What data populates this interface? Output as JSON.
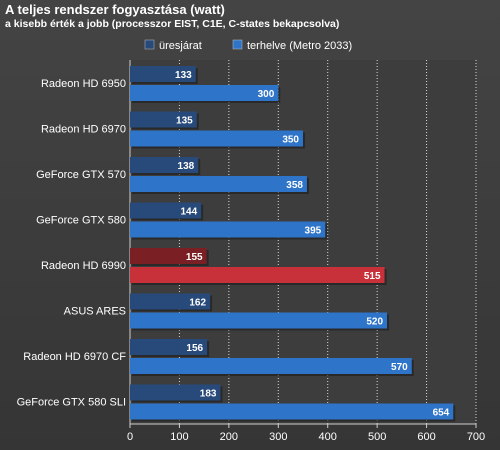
{
  "chart_data": {
    "type": "bar",
    "orientation": "horizontal",
    "title": "A teljes rendszer fogyasztása (watt)",
    "subtitle": "a kisebb érték a jobb (processzor EIST, C1E, C-states bekapcsolva)",
    "categories": [
      "Radeon HD 6950",
      "Radeon HD 6970",
      "GeForce GTX 570",
      "GeForce GTX 580",
      "Radeon HD 6990",
      "ASUS ARES",
      "Radeon HD 6970 CF",
      "GeForce GTX 580 SLI"
    ],
    "series": [
      {
        "name": "üresjárat",
        "values": [
          133,
          135,
          138,
          144,
          155,
          162,
          156,
          183
        ],
        "color": "#284a7a"
      },
      {
        "name": "terhelve (Metro 2033)",
        "values": [
          300,
          350,
          358,
          395,
          515,
          520,
          570,
          654
        ],
        "color": "#2e74c8"
      }
    ],
    "highlight": {
      "category": "Radeon HD 6990",
      "colors": [
        "#7a1f24",
        "#c8303a"
      ]
    },
    "xlim": [
      0,
      700
    ],
    "xticks": [
      0,
      100,
      200,
      300,
      400,
      500,
      600,
      700
    ],
    "grid": true,
    "legend_position": "top"
  }
}
